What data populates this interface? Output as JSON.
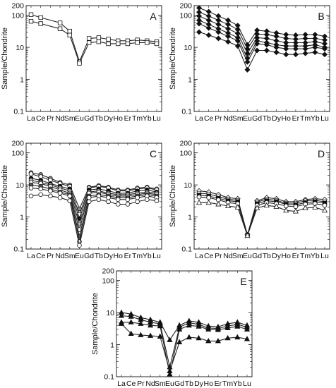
{
  "figure": {
    "ylabel": "Sample/Chondrite",
    "categories": [
      "La",
      "Ce",
      "Pr",
      "Nd",
      "Sm",
      "Eu",
      "Gd",
      "Tb",
      "Dy",
      "Ho",
      "Er",
      "Tm",
      "Yb",
      "Lu"
    ]
  },
  "chart_data": [
    {
      "type": "line",
      "panel": "A",
      "yscale": "log",
      "ylim": [
        0.1,
        200
      ],
      "yticks": [
        "0.1",
        "1",
        "10",
        "100",
        "200"
      ],
      "categories": [
        "La",
        "Ce",
        "Pr",
        "Nd",
        "Sm",
        "Eu",
        "Gd",
        "Tb",
        "Dy",
        "Ho",
        "Er",
        "Tm",
        "Yb",
        "Lu"
      ],
      "marker": "square-open",
      "series": [
        {
          "values": [
            105,
            85,
            null,
            58,
            32,
            3.6,
            19,
            20,
            18,
            16,
            16,
            17,
            16,
            15
          ]
        },
        {
          "values": [
            65,
            55,
            null,
            38,
            24,
            3.2,
            14,
            15,
            13,
            13,
            13,
            14,
            14,
            13
          ]
        }
      ]
    },
    {
      "type": "line",
      "panel": "B",
      "yscale": "log",
      "ylim": [
        0.1,
        200
      ],
      "yticks": [
        "0.1",
        "1",
        "10",
        "100",
        "200"
      ],
      "categories": [
        "La",
        "Ce",
        "Pr",
        "Nd",
        "Sm",
        "Eu",
        "Gd",
        "Tb",
        "Dy",
        "Ho",
        "Er",
        "Tm",
        "Yb",
        "Lu"
      ],
      "marker": "diamond-filled",
      "series": [
        {
          "values": [
            170,
            130,
            95,
            70,
            48,
            12,
            34,
            32,
            28,
            25,
            24,
            25,
            25,
            22
          ]
        },
        {
          "values": [
            125,
            95,
            70,
            52,
            36,
            9,
            26,
            25,
            22,
            19,
            18,
            19,
            19,
            17
          ]
        },
        {
          "values": [
            95,
            70,
            52,
            38,
            27,
            6.5,
            20,
            19,
            16,
            14,
            14,
            14,
            15,
            13
          ]
        },
        {
          "values": [
            70,
            52,
            38,
            28,
            20,
            4.5,
            16,
            14,
            12,
            11,
            11,
            11,
            12,
            10
          ]
        },
        {
          "values": [
            55,
            40,
            30,
            22,
            16,
            3.5,
            13,
            12,
            10,
            9,
            9,
            9,
            10,
            9
          ]
        },
        {
          "values": [
            30,
            24,
            19,
            15,
            11,
            2,
            8,
            8,
            7,
            6,
            6,
            6.5,
            7,
            6
          ]
        }
      ]
    },
    {
      "type": "line",
      "panel": "C",
      "yscale": "log",
      "ylim": [
        0.1,
        200
      ],
      "yticks": [
        "0.1",
        "1",
        "10",
        "100",
        "200"
      ],
      "categories": [
        "La",
        "Ce",
        "Pr",
        "Nd",
        "Sm",
        "Eu",
        "Gd",
        "Tb",
        "Dy",
        "Ho",
        "Er",
        "Tm",
        "Yb",
        "Lu"
      ],
      "marker": "circle-mixed",
      "series": [
        {
          "values": [
            24,
            21,
            16,
            12,
            10,
            1.8,
            8.5,
            9.5,
            8.5,
            7,
            7,
            8,
            8.5,
            7.5
          ]
        },
        {
          "values": [
            22,
            18,
            14,
            11,
            9,
            1.2,
            8,
            9,
            8,
            6.5,
            6.5,
            7.5,
            8,
            7
          ]
        },
        {
          "values": [
            16,
            14,
            11,
            9,
            7.5,
            0.9,
            7,
            7.5,
            6.5,
            5.5,
            5.5,
            6.5,
            7,
            6
          ]
        },
        {
          "values": [
            14,
            12,
            10,
            8,
            6.5,
            0.6,
            6,
            6.5,
            5.5,
            5,
            5,
            5.5,
            6,
            5.5
          ]
        },
        {
          "values": [
            12,
            11,
            9,
            7,
            5.5,
            0.4,
            5.5,
            6,
            5,
            4.5,
            4.5,
            5,
            5.5,
            5
          ]
        },
        {
          "values": [
            10,
            9,
            7.5,
            6,
            5,
            0.25,
            4.5,
            5,
            4.5,
            4,
            4,
            4.5,
            5,
            4.5
          ]
        },
        {
          "values": [
            8,
            7.5,
            6.5,
            5.5,
            4.5,
            0.17,
            4,
            4.5,
            4,
            3.5,
            3.5,
            4,
            4.5,
            4
          ]
        },
        {
          "values": [
            4.5,
            5,
            4.5,
            4,
            3.2,
            0.13,
            3,
            3.5,
            3,
            2.5,
            2.5,
            3,
            3.5,
            3.2
          ]
        }
      ]
    },
    {
      "type": "line",
      "panel": "D",
      "yscale": "log",
      "ylim": [
        0.1,
        200
      ],
      "yticks": [
        "0.1",
        "1",
        "10",
        "100",
        "200"
      ],
      "categories": [
        "La",
        "Ce",
        "Pr",
        "Nd",
        "Sm",
        "Eu",
        "Gd",
        "Tb",
        "Dy",
        "Ho",
        "Er",
        "Tm",
        "Yb",
        "Lu"
      ],
      "marker": "mixed-open",
      "series": [
        {
          "values": [
            6.5,
            6,
            5,
            4,
            3.7,
            0.28,
            3.2,
            4,
            3.7,
            3,
            3,
            3.5,
            3.7,
            3.5
          ]
        },
        {
          "values": [
            5.5,
            5.2,
            4.3,
            3.6,
            3.3,
            0.27,
            2.9,
            3.6,
            3.3,
            2.7,
            2.7,
            3.2,
            3.3,
            3
          ]
        },
        {
          "values": [
            4.8,
            4.5,
            3.8,
            3.2,
            3,
            0.27,
            2.6,
            3.2,
            3,
            2.5,
            2.4,
            2.8,
            3,
            2.7
          ]
        },
        {
          "values": [
            4.2,
            4,
            3.4,
            2.8,
            2.6,
            0.27,
            2.3,
            2.8,
            2.6,
            2.2,
            2.1,
            2.5,
            2.6,
            2.3
          ]
        },
        {
          "values": [
            2.8,
            2.8,
            2.5,
            2.2,
            2,
            0.26,
            1.9,
            2.3,
            2.1,
            1.6,
            1.5,
            1.9,
            2,
            1.6
          ]
        }
      ]
    },
    {
      "type": "line",
      "panel": "E",
      "yscale": "log",
      "ylim": [
        0.1,
        200
      ],
      "yticks": [
        "0.1",
        "1",
        "10",
        "100",
        "200"
      ],
      "categories": [
        "La",
        "Ce",
        "Pr",
        "Nd",
        "Sm",
        "Eu",
        "Gd",
        "Tb",
        "Dy",
        "Ho",
        "Er",
        "Tm",
        "Yb",
        "Lu"
      ],
      "marker": "triangle-mixed",
      "series": [
        {
          "values": [
            10,
            9,
            7,
            6,
            5,
            1.4,
            4,
            5.5,
            5,
            3.8,
            3.6,
            4.5,
            5,
            4
          ]
        },
        {
          "values": [
            8,
            7.5,
            6,
            5,
            4.5,
            0.2,
            3.5,
            4.8,
            4.3,
            3.3,
            3.2,
            3.8,
            4.3,
            3.5
          ]
        },
        {
          "values": [
            5,
            5,
            4.5,
            4,
            3.8,
            0.12,
            3,
            4,
            3.7,
            3,
            2.9,
            3.3,
            3.7,
            3
          ]
        },
        {
          "values": [
            4.5,
            2.2,
            2,
            1.9,
            1.8,
            0.15,
            1.2,
            1.7,
            1.6,
            1.3,
            1.3,
            1.6,
            1.7,
            1.5
          ]
        }
      ]
    }
  ]
}
